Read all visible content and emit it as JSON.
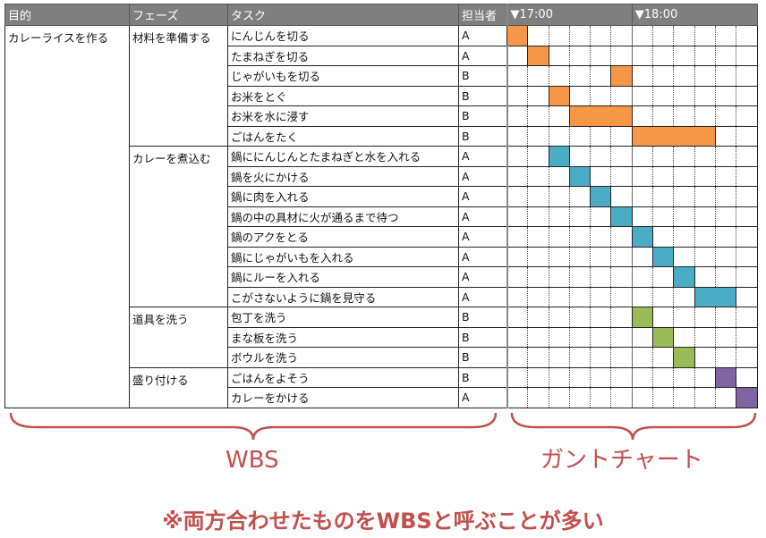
{
  "headers": {
    "purpose": "目的",
    "phase": "フェーズ",
    "task": "タスク",
    "assignee": "担当者",
    "time1": "▼17:00",
    "time2": "▼18:00"
  },
  "purpose": "カレーライスを作る",
  "phases": [
    {
      "name": "材料を準備する",
      "color": "#f79646",
      "tasks": [
        {
          "task": "にんじんを切る",
          "who": "A",
          "start": 0,
          "len": 1
        },
        {
          "task": "たまねぎを切る",
          "who": "A",
          "start": 1,
          "len": 1
        },
        {
          "task": "じゃがいもを切る",
          "who": "B",
          "start": 5,
          "len": 1
        },
        {
          "task": "お米をとぐ",
          "who": "B",
          "start": 2,
          "len": 1
        },
        {
          "task": "お米を水に浸す",
          "who": "B",
          "start": 3,
          "len": 3
        },
        {
          "task": "ごはんをたく",
          "who": "B",
          "start": 6,
          "len": 4
        }
      ]
    },
    {
      "name": "カレーを煮込む",
      "color": "#4bacc6",
      "tasks": [
        {
          "task": "鍋ににんじんとたまねぎと水を入れる",
          "who": "A",
          "start": 2,
          "len": 1
        },
        {
          "task": "鍋を火にかける",
          "who": "A",
          "start": 3,
          "len": 1
        },
        {
          "task": "鍋に肉を入れる",
          "who": "A",
          "start": 4,
          "len": 1
        },
        {
          "task": "鍋の中の具材に火が通るまで待つ",
          "who": "A",
          "start": 5,
          "len": 1
        },
        {
          "task": "鍋のアクをとる",
          "who": "A",
          "start": 6,
          "len": 1
        },
        {
          "task": "鍋にじゃがいもを入れる",
          "who": "A",
          "start": 7,
          "len": 1
        },
        {
          "task": "鍋にルーを入れる",
          "who": "A",
          "start": 8,
          "len": 1
        },
        {
          "task": "こがさないように鍋を見守る",
          "who": "A",
          "start": 9,
          "len": 2
        }
      ]
    },
    {
      "name": "道具を洗う",
      "color": "#9bbb59",
      "tasks": [
        {
          "task": "包丁を洗う",
          "who": "B",
          "start": 6,
          "len": 1
        },
        {
          "task": "まな板を洗う",
          "who": "B",
          "start": 7,
          "len": 1
        },
        {
          "task": "ボウルを洗う",
          "who": "B",
          "start": 8,
          "len": 1
        }
      ]
    },
    {
      "name": "盛り付ける",
      "color": "#8064a2",
      "tasks": [
        {
          "task": "ごはんをよそう",
          "who": "B",
          "start": 10,
          "len": 1
        },
        {
          "task": "カレーをかける",
          "who": "A",
          "start": 11,
          "len": 1
        }
      ]
    }
  ],
  "gantt_slot_minutes": 10,
  "gantt_slots": 12,
  "labels": {
    "wbs": "WBS",
    "gantt": "ガントチャート"
  },
  "footer": "※両方合わせたものをWBSと呼ぶことが多い",
  "accent": "#c0504d"
}
